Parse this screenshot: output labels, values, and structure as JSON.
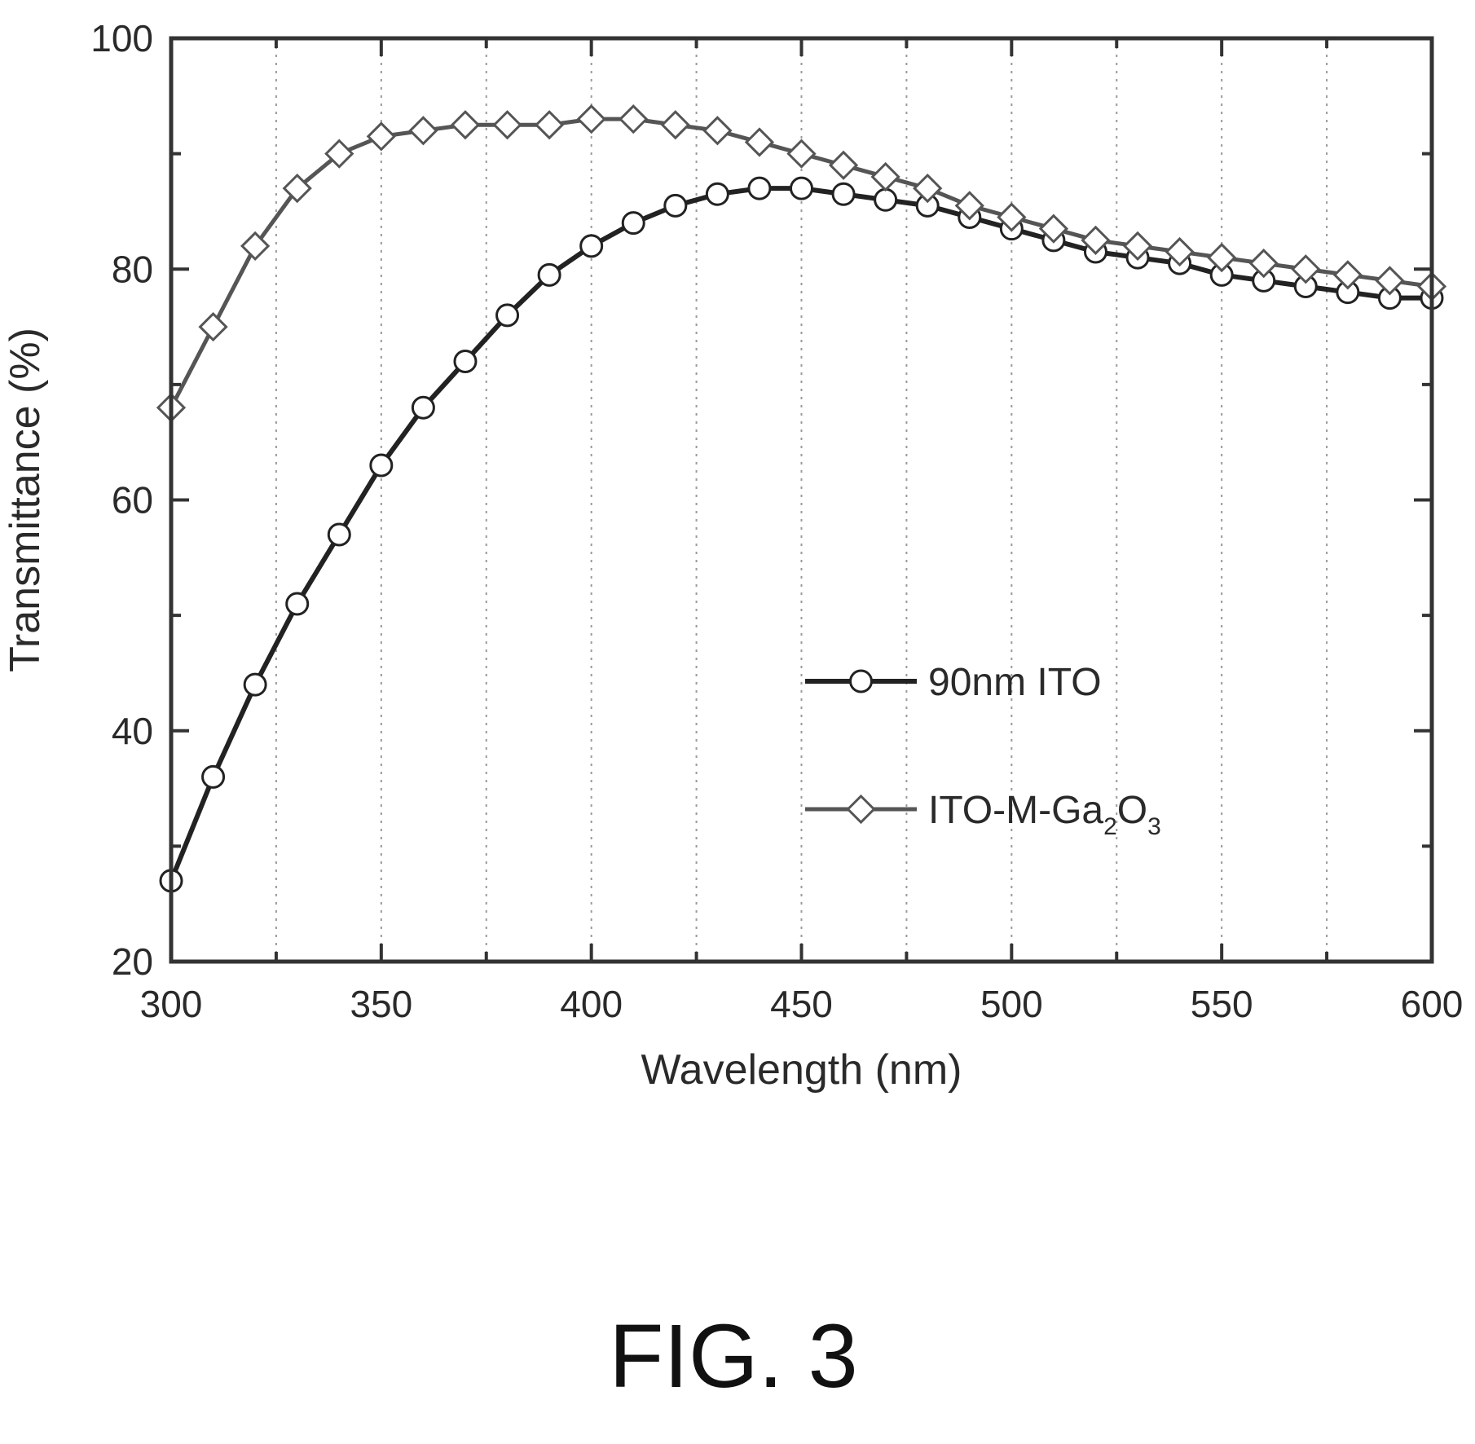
{
  "chart_data": {
    "type": "line",
    "xlabel": "Wavelength (nm)",
    "ylabel": "Transmittance (%)",
    "xlim": [
      300,
      600
    ],
    "ylim": [
      20,
      100
    ],
    "xticks": [
      300,
      350,
      400,
      450,
      500,
      550,
      600
    ],
    "yticks": [
      20,
      40,
      60,
      80,
      100
    ],
    "grid": "vertical dotted lines at x minor ticks",
    "legend_position": "center-right",
    "series": [
      {
        "name": "90nm ITO",
        "marker": "circle",
        "color": "#222222",
        "x": [
          300,
          310,
          320,
          330,
          340,
          350,
          360,
          370,
          380,
          390,
          400,
          410,
          420,
          430,
          440,
          450,
          460,
          470,
          480,
          490,
          500,
          510,
          520,
          530,
          540,
          550,
          560,
          570,
          580,
          590,
          600
        ],
        "y": [
          27,
          36,
          44,
          51,
          57,
          63,
          68,
          72,
          76,
          79.5,
          82,
          84,
          85.5,
          86.5,
          87,
          87,
          86.5,
          86,
          85.5,
          84.5,
          83.5,
          82.5,
          81.5,
          81,
          80.5,
          79.5,
          79,
          78.5,
          78,
          77.5,
          77.5
        ]
      },
      {
        "name": "ITO-M-Ga2O3",
        "legend_main": "ITO-M-Ga",
        "legend_sub_a": "2",
        "legend_mid": "O",
        "legend_sub_b": "3",
        "marker": "diamond",
        "color": "#555555",
        "x": [
          300,
          310,
          320,
          330,
          340,
          350,
          360,
          370,
          380,
          390,
          400,
          410,
          420,
          430,
          440,
          450,
          460,
          470,
          480,
          490,
          500,
          510,
          520,
          530,
          540,
          550,
          560,
          570,
          580,
          590,
          600
        ],
        "y": [
          68,
          75,
          82,
          87,
          90,
          91.5,
          92,
          92.5,
          92.5,
          92.5,
          93,
          93,
          92.5,
          92,
          91,
          90,
          89,
          88,
          87,
          85.5,
          84.5,
          83.5,
          82.5,
          82,
          81.5,
          81,
          80.5,
          80,
          79.5,
          79,
          78.5
        ]
      }
    ]
  },
  "caption": "FIG. 3"
}
